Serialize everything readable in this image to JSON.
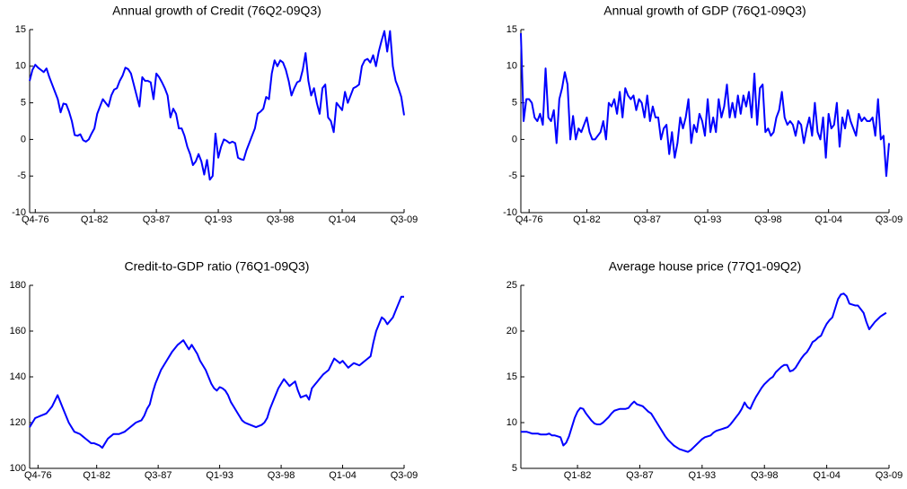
{
  "chart_data": [
    {
      "type": "line",
      "title": "Annual growth of Credit (76Q2-09Q3)",
      "color": "#0000ff",
      "categories": [
        null,
        null,
        "Q4-76",
        null,
        null,
        null,
        null,
        null,
        null,
        null,
        null,
        null,
        null,
        null,
        null,
        null,
        null,
        null,
        null,
        null,
        null,
        null,
        null,
        "Q1-82",
        null,
        null,
        null,
        null,
        null,
        null,
        null,
        null,
        null,
        null,
        null,
        null,
        null,
        null,
        null,
        null,
        null,
        null,
        null,
        null,
        null,
        "Q3-87",
        null,
        null,
        null,
        null,
        null,
        null,
        null,
        null,
        null,
        null,
        null,
        null,
        null,
        null,
        null,
        null,
        null,
        null,
        null,
        null,
        null,
        "Q1-93",
        null,
        null,
        null,
        null,
        null,
        null,
        null,
        null,
        null,
        null,
        null,
        null,
        null,
        null,
        null,
        null,
        null,
        null,
        null,
        null,
        null,
        "Q3-98",
        null,
        null,
        null,
        null,
        null,
        null,
        null,
        null,
        null,
        null,
        null,
        null,
        null,
        null,
        null,
        null,
        null,
        null,
        null,
        null,
        null,
        "Q1-04",
        null,
        null,
        null,
        null,
        null,
        null,
        null,
        null,
        null,
        null,
        null,
        null,
        null,
        null,
        null,
        null,
        null,
        null,
        null,
        null,
        null,
        "Q3-09"
      ],
      "values": [
        8,
        9.5,
        10.2,
        9.8,
        9.5,
        9.2,
        9.7,
        8.5,
        7.5,
        6.5,
        5.5,
        3.7,
        4.9,
        4.8,
        3.8,
        2.5,
        0.6,
        0.5,
        0.7,
        -0.1,
        -0.3,
        0,
        0.8,
        1.5,
        3.5,
        4.5,
        5.5,
        5,
        4.5,
        6,
        6.8,
        7,
        8,
        8.7,
        9.8,
        9.6,
        9,
        7.5,
        6,
        4.5,
        8.5,
        8,
        8,
        7.8,
        5.5,
        9,
        8.5,
        7.8,
        7,
        6,
        3,
        4.2,
        3.5,
        1.5,
        1.5,
        0.5,
        -1,
        -2,
        -3.5,
        -3,
        -2,
        -3,
        -4.8,
        -2.8,
        -5.5,
        -5,
        0.8,
        -2.5,
        -1,
        0,
        -0.2,
        -0.5,
        -0.3,
        -0.5,
        -2.5,
        -2.7,
        -2.8,
        -1.5,
        -0.5,
        0.5,
        1.5,
        3.5,
        3.8,
        4.2,
        5.8,
        5.5,
        9,
        10.8,
        10,
        10.8,
        10.5,
        9.5,
        8,
        6,
        7,
        7.8,
        8,
        9.5,
        11.8,
        8,
        6,
        7,
        5,
        3.5,
        7,
        7.5,
        3,
        2.5,
        1,
        5,
        4.5,
        4,
        6.5,
        5,
        6,
        7,
        7.2,
        7.5,
        10,
        10.8,
        11,
        10.5,
        11.5,
        10,
        12,
        13.5,
        14.8,
        12,
        14.8,
        10,
        8,
        7,
        5.8,
        3.3
      ],
      "ylim": [
        -10,
        15
      ],
      "yticks": [
        -10,
        -5,
        0,
        5,
        10,
        15
      ]
    },
    {
      "type": "line",
      "title": "Annual growth of GDP (76Q1-09Q3)",
      "color": "#0000ff",
      "categories": [
        null,
        null,
        null,
        "Q4-76",
        null,
        null,
        null,
        null,
        null,
        null,
        null,
        null,
        null,
        null,
        null,
        null,
        null,
        null,
        null,
        null,
        null,
        null,
        null,
        null,
        "Q1-82",
        null,
        null,
        null,
        null,
        null,
        null,
        null,
        null,
        null,
        null,
        null,
        null,
        null,
        null,
        null,
        null,
        null,
        null,
        null,
        null,
        null,
        "Q3-87",
        null,
        null,
        null,
        null,
        null,
        null,
        null,
        null,
        null,
        null,
        null,
        null,
        null,
        null,
        null,
        null,
        null,
        null,
        null,
        null,
        null,
        "Q1-93",
        null,
        null,
        null,
        null,
        null,
        null,
        null,
        null,
        null,
        null,
        null,
        null,
        null,
        null,
        null,
        null,
        null,
        null,
        null,
        null,
        null,
        "Q3-98",
        null,
        null,
        null,
        null,
        null,
        null,
        null,
        null,
        null,
        null,
        null,
        null,
        null,
        null,
        null,
        null,
        null,
        null,
        null,
        null,
        null,
        "Q1-04",
        null,
        null,
        null,
        null,
        null,
        null,
        null,
        null,
        null,
        null,
        null,
        null,
        null,
        null,
        null,
        null,
        null,
        null,
        null,
        null,
        null,
        "Q3-09"
      ],
      "values": [
        14.5,
        2.5,
        5.5,
        5.5,
        5,
        3,
        2.5,
        3.5,
        2,
        9.7,
        3,
        2.5,
        4,
        -0.5,
        5.5,
        7,
        9.2,
        7.5,
        0,
        3.2,
        0,
        1.5,
        1,
        2,
        3,
        1,
        0,
        0,
        0.5,
        1,
        2.5,
        0,
        5,
        4.5,
        5.5,
        3.5,
        6.5,
        3,
        7,
        6,
        5.5,
        6,
        4,
        5.5,
        5,
        3,
        6,
        2.5,
        4.5,
        3,
        3,
        0,
        1.5,
        2,
        -2,
        1,
        -2.5,
        -0.5,
        3,
        1.5,
        3,
        5.5,
        -0.5,
        2,
        1,
        3.5,
        2.5,
        0.5,
        5.5,
        1,
        3,
        1,
        5.5,
        3,
        4.5,
        7.5,
        3,
        5,
        3,
        6,
        3.5,
        6,
        4.5,
        6.5,
        3,
        9,
        2,
        7,
        7.5,
        1,
        1.5,
        0.5,
        1,
        3,
        4,
        6.5,
        3,
        2,
        2.5,
        2,
        0.5,
        2.5,
        2,
        -0.5,
        1.5,
        3,
        0.5,
        5,
        1,
        0,
        3,
        -2.5,
        3.5,
        1.5,
        2,
        5,
        -1,
        3,
        1.5,
        4,
        2.5,
        1.5,
        0.5,
        3.5,
        2.5,
        3,
        2.5,
        2.5,
        3,
        0.5,
        5.5,
        0,
        0.5,
        -5,
        -0.5
      ],
      "ylim": [
        -10,
        15
      ],
      "yticks": [
        -10,
        -5,
        0,
        5,
        10,
        15
      ]
    },
    {
      "type": "line",
      "title": "Credit-to-GDP ratio (76Q1-09Q3)",
      "color": "#0000ff",
      "categories": [
        null,
        null,
        null,
        "Q4-76",
        null,
        null,
        null,
        null,
        null,
        null,
        null,
        null,
        null,
        null,
        null,
        null,
        null,
        null,
        null,
        null,
        null,
        null,
        null,
        null,
        "Q1-82",
        null,
        null,
        null,
        null,
        null,
        null,
        null,
        null,
        null,
        null,
        null,
        null,
        null,
        null,
        null,
        null,
        null,
        null,
        null,
        null,
        null,
        "Q3-87",
        null,
        null,
        null,
        null,
        null,
        null,
        null,
        null,
        null,
        null,
        null,
        null,
        null,
        null,
        null,
        null,
        null,
        null,
        null,
        null,
        null,
        "Q1-93",
        null,
        null,
        null,
        null,
        null,
        null,
        null,
        null,
        null,
        null,
        null,
        null,
        null,
        null,
        null,
        null,
        null,
        null,
        null,
        null,
        null,
        "Q3-98",
        null,
        null,
        null,
        null,
        null,
        null,
        null,
        null,
        null,
        null,
        null,
        null,
        null,
        null,
        null,
        null,
        null,
        null,
        null,
        null,
        null,
        "Q1-04",
        null,
        null,
        null,
        null,
        null,
        null,
        null,
        null,
        null,
        null,
        null,
        null,
        null,
        null,
        null,
        null,
        null,
        null,
        null,
        null,
        null,
        "Q3-09"
      ],
      "values": [
        118,
        120,
        122,
        122.5,
        123,
        123.5,
        124,
        125.5,
        127,
        129.5,
        132,
        129,
        126,
        123,
        120,
        118,
        116,
        115.5,
        115,
        114,
        113,
        112,
        111,
        111,
        110.5,
        110,
        109,
        111,
        113,
        114,
        115,
        115,
        115,
        115.5,
        116,
        117,
        118,
        119,
        120,
        120.5,
        121,
        123,
        126,
        128,
        133,
        137,
        140,
        143,
        145,
        147,
        149,
        151,
        152.5,
        154,
        155,
        156,
        154,
        152,
        154,
        152,
        150,
        147,
        145,
        143,
        140,
        137,
        135,
        134,
        135.5,
        135,
        134,
        132,
        129,
        127,
        125,
        123,
        121,
        120,
        119.5,
        119,
        118.5,
        118,
        118.5,
        119,
        120,
        122,
        126,
        129,
        132,
        135,
        137,
        139,
        137.5,
        136,
        137,
        138,
        134,
        131,
        131.5,
        132,
        130,
        135,
        136.5,
        138,
        139.5,
        141,
        142,
        143,
        145.5,
        148,
        147,
        146,
        147,
        145.5,
        144,
        145,
        146,
        145.5,
        145,
        146,
        147,
        148,
        149,
        155,
        160,
        163,
        166,
        165,
        163,
        164.5,
        166,
        169,
        172,
        175,
        175
      ],
      "ylim": [
        100,
        180
      ],
      "yticks": [
        100,
        120,
        140,
        160,
        180
      ]
    },
    {
      "type": "line",
      "title": "Average house price (77Q1-09Q2)",
      "color": "#0000ff",
      "categories": [
        null,
        null,
        null,
        null,
        null,
        null,
        null,
        null,
        null,
        null,
        null,
        null,
        null,
        null,
        null,
        null,
        null,
        null,
        null,
        null,
        "Q1-82",
        null,
        null,
        null,
        null,
        null,
        null,
        null,
        null,
        null,
        null,
        null,
        null,
        null,
        null,
        null,
        null,
        null,
        null,
        null,
        null,
        null,
        "Q3-87",
        null,
        null,
        null,
        null,
        null,
        null,
        null,
        null,
        null,
        null,
        null,
        null,
        null,
        null,
        null,
        null,
        null,
        null,
        null,
        null,
        null,
        "Q1-93",
        null,
        null,
        null,
        null,
        null,
        null,
        null,
        null,
        null,
        null,
        null,
        null,
        null,
        null,
        null,
        null,
        null,
        null,
        null,
        null,
        null,
        "Q3-98",
        null,
        null,
        null,
        null,
        null,
        null,
        null,
        null,
        null,
        null,
        null,
        null,
        null,
        null,
        null,
        null,
        null,
        null,
        null,
        null,
        null,
        "Q1-04",
        null,
        null,
        null,
        null,
        null,
        null,
        null,
        null,
        null,
        null,
        null,
        null,
        null,
        null,
        null,
        null,
        null,
        null,
        null,
        null,
        null,
        "Q3-09"
      ],
      "values": [
        9,
        9,
        9,
        8.9,
        8.8,
        8.8,
        8.8,
        8.7,
        8.7,
        8.7,
        8.8,
        8.6,
        8.6,
        8.5,
        8.4,
        7.5,
        7.8,
        8.5,
        9.5,
        10.5,
        11.2,
        11.6,
        11.5,
        11,
        10.6,
        10.2,
        9.9,
        9.8,
        9.8,
        10,
        10.3,
        10.6,
        11,
        11.3,
        11.4,
        11.5,
        11.5,
        11.5,
        11.6,
        12,
        12.3,
        12,
        11.9,
        11.8,
        11.5,
        11.2,
        11,
        10.5,
        10,
        9.5,
        9,
        8.5,
        8.1,
        7.8,
        7.5,
        7.3,
        7.1,
        7,
        6.9,
        6.8,
        7,
        7.3,
        7.6,
        7.9,
        8.2,
        8.4,
        8.5,
        8.6,
        8.9,
        9.1,
        9.2,
        9.3,
        9.4,
        9.5,
        9.8,
        10.2,
        10.6,
        11,
        11.5,
        12.2,
        11.7,
        11.5,
        12.2,
        12.8,
        13.3,
        13.8,
        14.2,
        14.5,
        14.8,
        15,
        15.5,
        15.8,
        16.1,
        16.3,
        16.3,
        15.6,
        15.7,
        16,
        16.5,
        17,
        17.4,
        17.7,
        18.2,
        18.8,
        19,
        19.3,
        19.5,
        20.2,
        20.8,
        21.2,
        21.5,
        22.5,
        23.5,
        24,
        24.1,
        23.8,
        23,
        22.9,
        22.8,
        22.8,
        22.4,
        22,
        21,
        20.2,
        20.6,
        21,
        21.3,
        21.6,
        21.8,
        22,
        null
      ],
      "ylim": [
        5,
        25
      ],
      "yticks": [
        5,
        10,
        15,
        20,
        25
      ]
    }
  ]
}
